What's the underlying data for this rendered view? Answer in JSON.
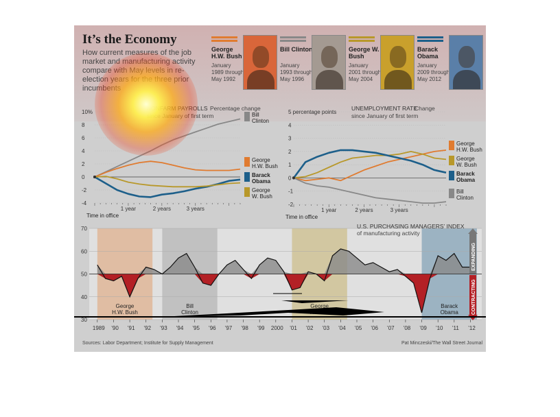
{
  "header": {
    "title": "It’s the Economy",
    "subtitle": "How current measures of the job market and manufacturing activity compare with May levels in re-election years for the three prior incumbents"
  },
  "presidents": [
    {
      "name": "George H.W. Bush",
      "dates": "January 1989 through May 1992",
      "color": "#e07b30"
    },
    {
      "name": "Bill Clinton",
      "dates": "January 1993 through May 1996",
      "color": "#888888"
    },
    {
      "name": "George W. Bush",
      "dates": "January 2001 through May 2004",
      "color": "#b8982a"
    },
    {
      "name": "Barack Obama",
      "dates": "January 2009 through May 2012",
      "color": "#1d5f8a"
    }
  ],
  "colors": {
    "ghwb": "#e07b30",
    "clinton": "#888888",
    "gwb": "#b8982a",
    "obama": "#1d5f8a",
    "contracting": "#b32025",
    "expanding": "#8a8a8a"
  },
  "chart_data": [
    {
      "type": "line",
      "title": "NONFARM PAYROLLS",
      "subtitle": "Percentage change since January of first term",
      "xlabel": "Time in office",
      "x_tick_labels": [
        "1 year",
        "2 years",
        "3 years"
      ],
      "ylim": [
        -4,
        10
      ],
      "y_ticks": [
        "10%",
        "8",
        "6",
        "4",
        "2",
        "0",
        "-2",
        "-4"
      ],
      "x": [
        0,
        4,
        8,
        12,
        16,
        20,
        24,
        28,
        32,
        36,
        40,
        44,
        48,
        52
      ],
      "series": [
        {
          "name": "Bill Clinton",
          "color": "#888888",
          "values": [
            0,
            0.8,
            1.6,
            2.4,
            3.2,
            4.0,
            4.9,
            5.7,
            6.3,
            6.9,
            7.5,
            8.1,
            8.5,
            8.9
          ]
        },
        {
          "name": "George H.W. Bush",
          "color": "#e07b30",
          "values": [
            0,
            0.7,
            1.3,
            1.8,
            2.2,
            2.4,
            2.2,
            1.8,
            1.4,
            1.1,
            1.0,
            1.0,
            1.0,
            1.2
          ]
        },
        {
          "name": "Barack Obama",
          "color": "#1d5f8a",
          "values": [
            0,
            -1.0,
            -2.0,
            -2.6,
            -3.0,
            -3.1,
            -2.7,
            -2.5,
            -2.2,
            -1.8,
            -1.5,
            -1.1,
            -0.6,
            -0.4
          ]
        },
        {
          "name": "George W. Bush",
          "color": "#b8982a",
          "values": [
            0,
            0.1,
            -0.3,
            -0.8,
            -1.1,
            -1.3,
            -1.4,
            -1.5,
            -1.5,
            -1.5,
            -1.4,
            -1.2,
            -1.0,
            -0.9
          ]
        }
      ]
    },
    {
      "type": "line",
      "title": "UNEMPLOYMENT RATE",
      "subtitle": "Change since January of first term",
      "xlabel": "Time in office",
      "x_tick_labels": [
        "1 year",
        "2 years",
        "3 years"
      ],
      "ylim": [
        -2,
        5
      ],
      "y_ticks": [
        "5 percentage points",
        "4",
        "3",
        "2",
        "1",
        "0",
        "-1",
        "-2"
      ],
      "x": [
        0,
        4,
        8,
        12,
        16,
        20,
        24,
        28,
        32,
        36,
        40,
        44,
        48,
        52
      ],
      "series": [
        {
          "name": "George H.W. Bush",
          "color": "#e07b30",
          "values": [
            0,
            -0.2,
            -0.1,
            0,
            -0.2,
            0.2,
            0.6,
            0.9,
            1.2,
            1.4,
            1.6,
            1.8,
            2.0,
            2.1
          ]
        },
        {
          "name": "George W. Bush",
          "color": "#b8982a",
          "values": [
            0,
            0.1,
            0.4,
            0.8,
            1.2,
            1.5,
            1.6,
            1.7,
            1.7,
            1.8,
            2.0,
            1.8,
            1.5,
            1.4
          ]
        },
        {
          "name": "Barack Obama",
          "color": "#1d5f8a",
          "values": [
            0,
            1.2,
            1.6,
            1.9,
            2.1,
            2.1,
            2.0,
            1.9,
            1.7,
            1.5,
            1.3,
            1.0,
            0.6,
            0.4
          ]
        },
        {
          "name": "Bill Clinton",
          "color": "#888888",
          "values": [
            0,
            -0.4,
            -0.6,
            -0.7,
            -0.9,
            -1.1,
            -1.3,
            -1.5,
            -1.6,
            -1.7,
            -1.8,
            -1.9,
            -1.9,
            -1.8
          ]
        }
      ]
    },
    {
      "type": "area",
      "title": "U.S. PURCHASING MANAGERS’ INDEX",
      "subtitle": "of manufacturing activity",
      "baseline": 50,
      "ylim": [
        30,
        70
      ],
      "y_ticks": [
        "70",
        "60",
        "50",
        "40",
        "30"
      ],
      "x_tick_labels": [
        "1989",
        "’90",
        "’91",
        "’92",
        "’93",
        "’94",
        "’95",
        "’96",
        "’97",
        "’98",
        "’99",
        "2000",
        "’01",
        "’02",
        "’03",
        "’04",
        "’05",
        "’06",
        "’07",
        "’08",
        "’09",
        "’10",
        "’11",
        "’12"
      ],
      "years": [
        1989,
        1989.5,
        1990,
        1990.5,
        1991,
        1991.5,
        1992,
        1992.5,
        1993,
        1993.5,
        1994,
        1994.5,
        1995,
        1995.5,
        1996,
        1996.5,
        1997,
        1997.5,
        1998,
        1998.5,
        1999,
        1999.5,
        2000,
        2000.5,
        2001,
        2001.5,
        2002,
        2002.5,
        2003,
        2003.5,
        2004,
        2004.5,
        2005,
        2005.5,
        2006,
        2006.5,
        2007,
        2007.5,
        2008,
        2008.5,
        2009,
        2009.5,
        2010,
        2010.5,
        2011,
        2011.5,
        2012,
        2012.3
      ],
      "values": [
        54,
        48,
        47,
        49,
        40,
        48,
        53,
        52,
        50,
        53,
        57,
        59,
        53,
        46,
        45,
        50,
        54,
        56,
        52,
        48,
        54,
        57,
        56,
        51,
        43,
        44,
        51,
        50,
        47,
        58,
        61,
        60,
        57,
        54,
        55,
        53,
        51,
        52,
        49,
        46,
        33,
        48,
        58,
        56,
        59,
        53,
        53,
        54
      ],
      "periods": [
        {
          "name": "George H.W. Bush",
          "start": 1989,
          "end": 1992.4,
          "color": "#e07b30"
        },
        {
          "name": "Bill Clinton",
          "start": 1993,
          "end": 1996.4,
          "color": "#888888"
        },
        {
          "name": "George W. Bush",
          "start": 2001,
          "end": 2004.4,
          "color": "#b8982a"
        },
        {
          "name": "Barack Obama",
          "start": 2009,
          "end": 2012.4,
          "color": "#1d5f8a"
        }
      ],
      "annotations": [
        "EXPANDING",
        "CONTRACTING"
      ]
    }
  ],
  "footer": {
    "source": "Sources: Labor Department; Institute for Supply Management",
    "credit": "Pat Minczeski/The Wall Street Journal"
  }
}
